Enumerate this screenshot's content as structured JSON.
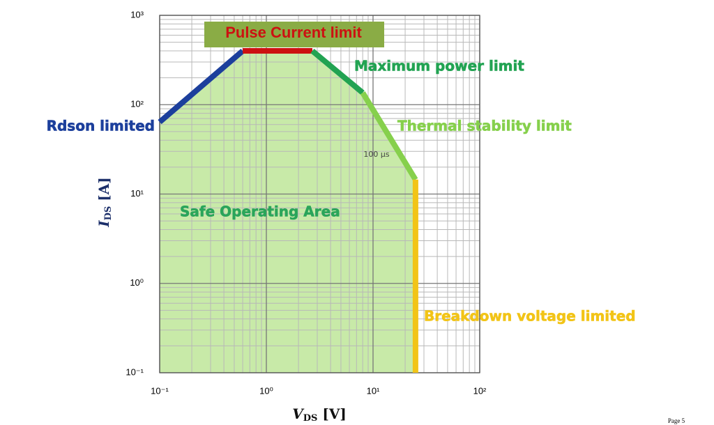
{
  "chart_data": {
    "type": "line",
    "xlabel": [
      "V",
      "DS",
      " [V]"
    ],
    "ylabel": [
      "I",
      "DS",
      " [A]"
    ],
    "xscale": "log",
    "yscale": "log",
    "grid": true,
    "minor_grid": true,
    "xlim": [
      0.1,
      100
    ],
    "ylim": [
      0.1,
      1000
    ],
    "xticks": [
      {
        "value": 0.1,
        "label": "10⁻¹"
      },
      {
        "value": 1,
        "label": "10⁰"
      },
      {
        "value": 10,
        "label": "10¹"
      },
      {
        "value": 100,
        "label": "10²"
      }
    ],
    "yticks": [
      {
        "value": 0.1,
        "label": "10⁻¹"
      },
      {
        "value": 1,
        "label": "10⁰"
      },
      {
        "value": 10,
        "label": "10¹"
      },
      {
        "value": 100,
        "label": "10²"
      },
      {
        "value": 1000,
        "label": "10³"
      }
    ],
    "area_label": "Safe Operating Area",
    "area_color": "#c8eaa8",
    "annotation": "100 µs",
    "series": [
      {
        "name": "Rdson limited",
        "color": "#1c3f9c",
        "x": [
          0.1,
          0.6
        ],
        "y": [
          64,
          400
        ]
      },
      {
        "name": "Pulse Current limit",
        "color": "#cc1111",
        "x": [
          0.6,
          2.7
        ],
        "y": [
          400,
          400
        ]
      },
      {
        "name": "Maximum power limit",
        "color": "#22a352",
        "x": [
          2.7,
          8
        ],
        "y": [
          400,
          136
        ]
      },
      {
        "name": "Thermal stability limit",
        "color": "#86d04c",
        "x": [
          8,
          25
        ],
        "y": [
          136,
          14.5
        ]
      },
      {
        "name": "Breakdown voltage limited",
        "color": "#f2c417",
        "x": [
          25,
          25
        ],
        "y": [
          14.5,
          0.1
        ]
      }
    ]
  },
  "footer": "Page 5"
}
